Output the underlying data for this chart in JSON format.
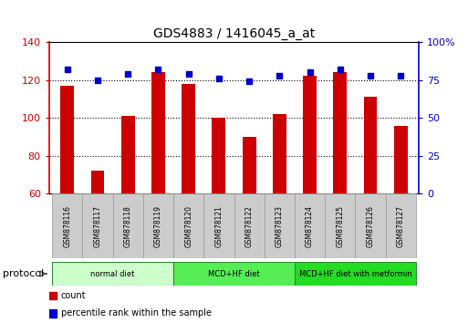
{
  "title": "GDS4883 / 1416045_a_at",
  "samples": [
    "GSM878116",
    "GSM878117",
    "GSM878118",
    "GSM878119",
    "GSM878120",
    "GSM878121",
    "GSM878122",
    "GSM878123",
    "GSM878124",
    "GSM878125",
    "GSM878126",
    "GSM878127"
  ],
  "counts": [
    117,
    72,
    101,
    124,
    118,
    100,
    90,
    102,
    122,
    124,
    111,
    96
  ],
  "percentile": [
    82,
    75,
    79,
    82,
    79,
    76,
    74,
    78,
    80,
    82,
    78,
    78
  ],
  "ylim_left": [
    60,
    140
  ],
  "ylim_right": [
    0,
    100
  ],
  "yticks_left": [
    60,
    80,
    100,
    120,
    140
  ],
  "yticks_right": [
    0,
    25,
    50,
    75,
    100
  ],
  "bar_color": "#cc0000",
  "dot_color": "#0000cc",
  "bg_color": "#ffffff",
  "protocol_groups": [
    {
      "label": "normal diet",
      "start": 0,
      "end": 3,
      "color": "#ccffcc"
    },
    {
      "label": "MCD+HF diet",
      "start": 4,
      "end": 7,
      "color": "#55ee55"
    },
    {
      "label": "MCD+HF diet with metformin",
      "start": 8,
      "end": 11,
      "color": "#22dd22"
    }
  ],
  "tick_label_area_color": "#cccccc",
  "legend_items": [
    {
      "label": "count",
      "color": "#cc0000"
    },
    {
      "label": "percentile rank within the sample",
      "color": "#0000cc"
    }
  ]
}
